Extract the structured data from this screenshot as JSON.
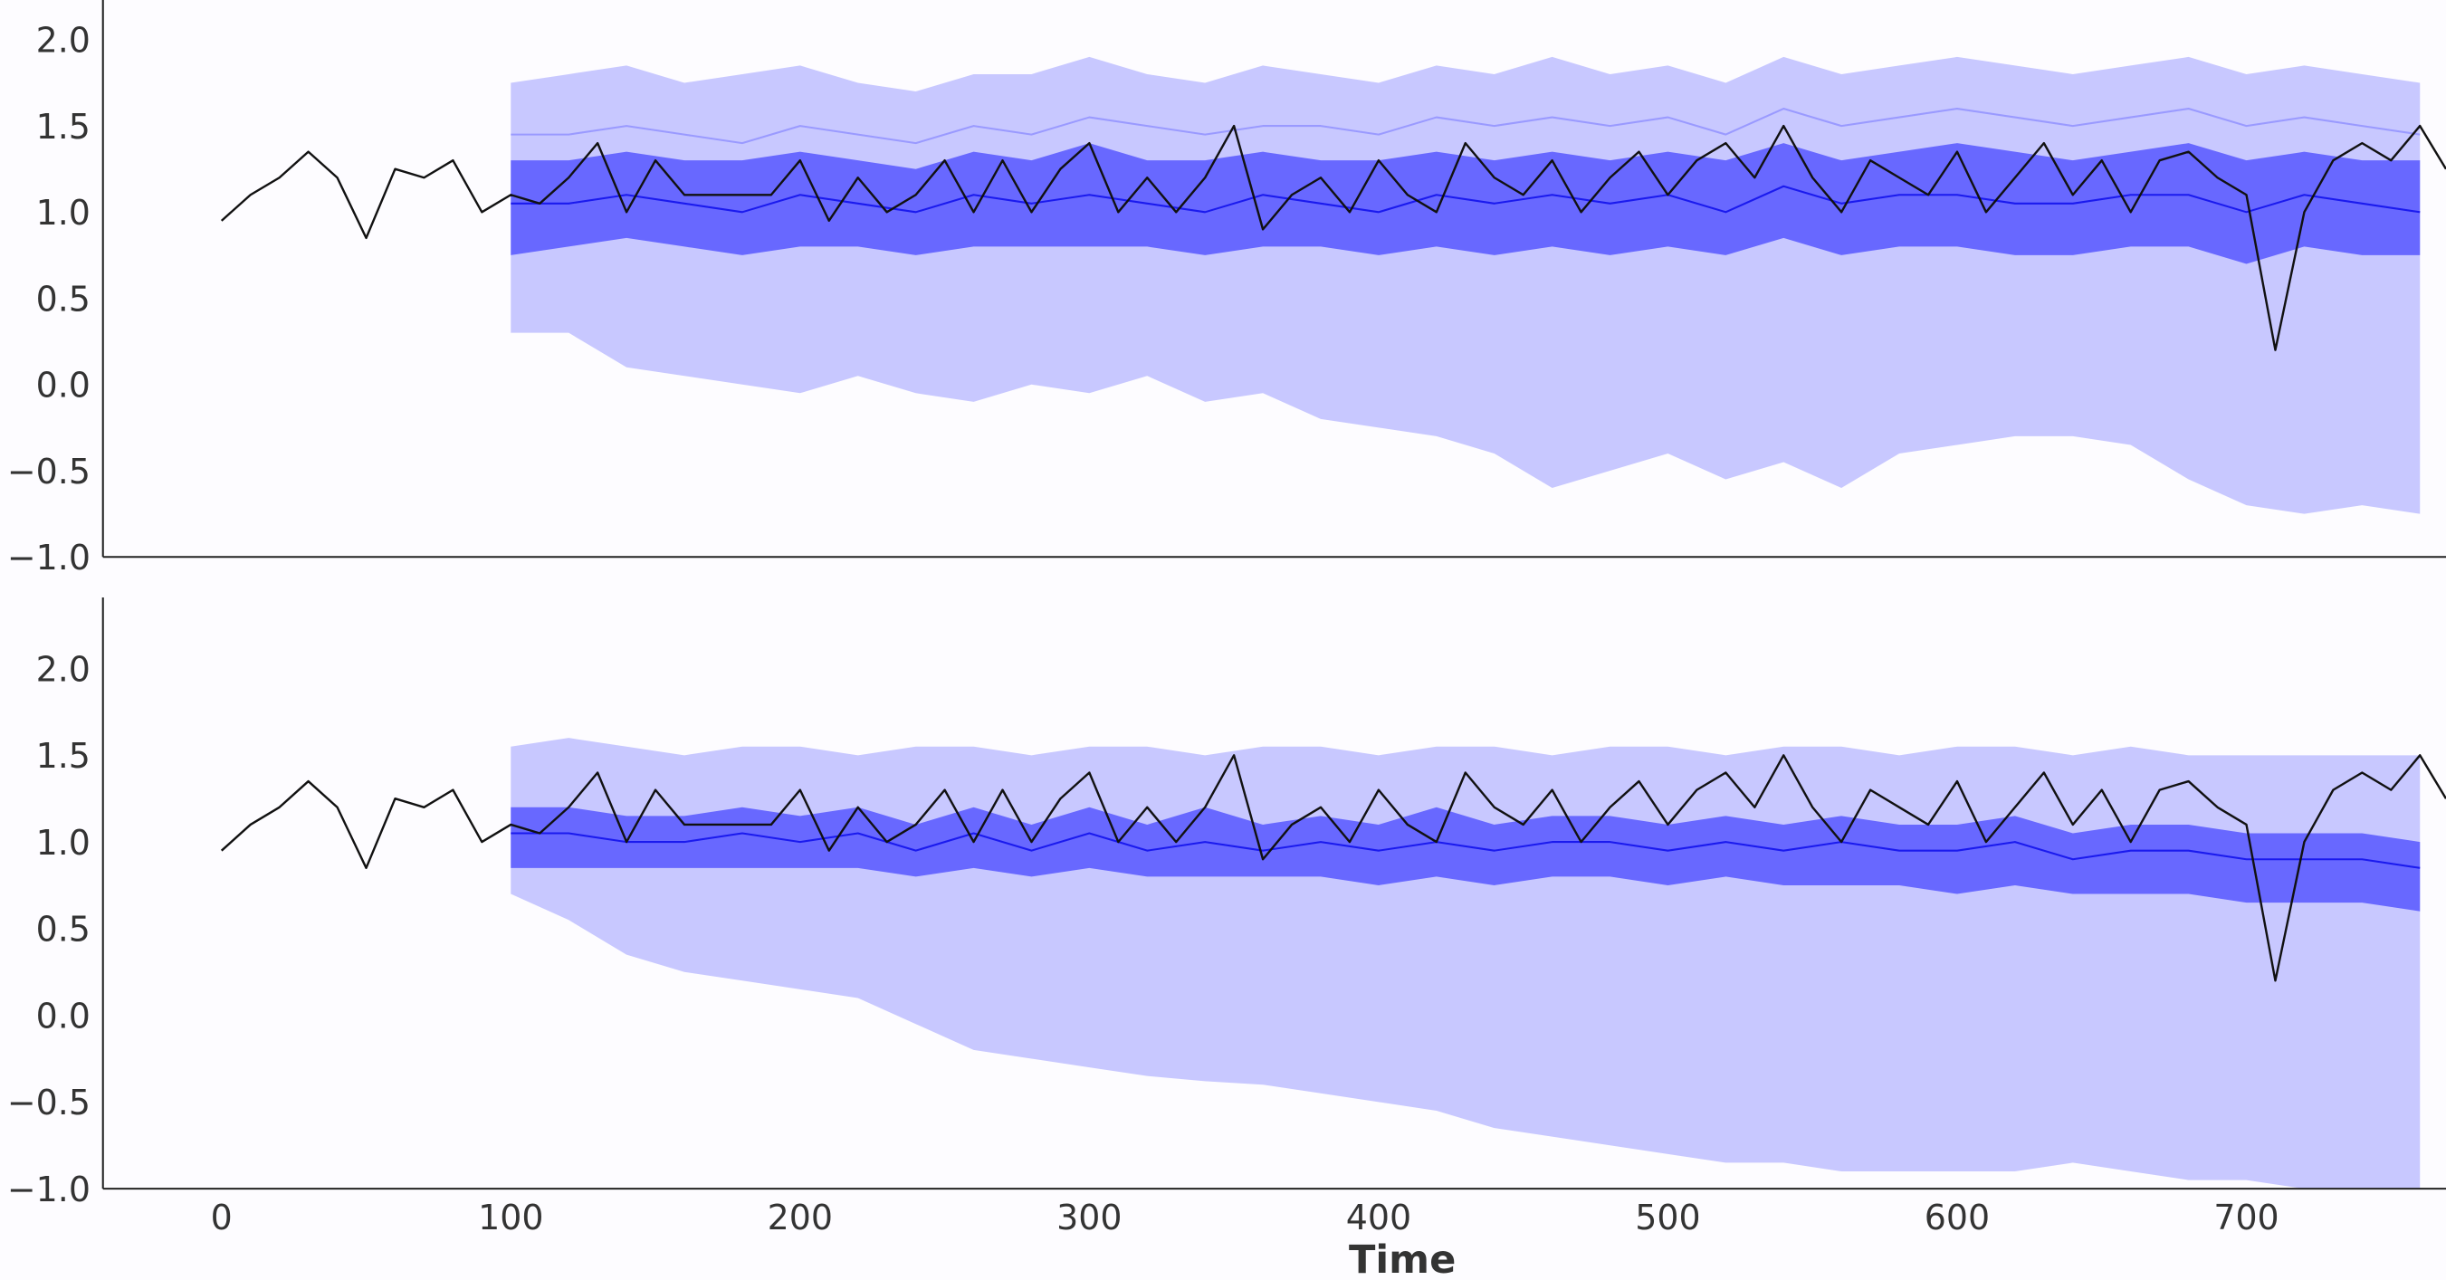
{
  "chart_data": [
    {
      "type": "area",
      "panel": "top",
      "xlim": [
        -41,
        769
      ],
      "ylim": [
        -1.0,
        2.23
      ],
      "yticks": [
        "2.0",
        "1.5",
        "1.0",
        "0.5",
        "0.0",
        "−0.5",
        "−1.0"
      ],
      "ytick_values": [
        2.0,
        1.5,
        1.0,
        0.5,
        0.0,
        -0.5,
        -1.0
      ],
      "grid": false,
      "colors": {
        "observed": "#111111",
        "median": "#1a1aee",
        "inner_band": "#6868ff",
        "outer_band": "#c8c8ff",
        "upper_line": "#9a9aff"
      },
      "forecast_x": [
        100,
        120,
        140,
        160,
        180,
        200,
        220,
        240,
        260,
        280,
        300,
        320,
        340,
        360,
        380,
        400,
        420,
        440,
        460,
        480,
        500,
        520,
        540,
        560,
        580,
        600,
        620,
        640,
        660,
        680,
        700,
        720,
        740,
        760
      ],
      "outer_lower": [
        0.3,
        0.3,
        0.1,
        0.05,
        0.0,
        -0.05,
        0.05,
        -0.05,
        -0.1,
        0.0,
        -0.05,
        0.05,
        -0.1,
        -0.05,
        -0.2,
        -0.25,
        -0.3,
        -0.4,
        -0.6,
        -0.5,
        -0.4,
        -0.55,
        -0.45,
        -0.6,
        -0.4,
        -0.35,
        -0.3,
        -0.3,
        -0.35,
        -0.55,
        -0.7,
        -0.75,
        -0.7,
        -0.75
      ],
      "outer_upper": [
        1.75,
        1.8,
        1.85,
        1.75,
        1.8,
        1.85,
        1.75,
        1.7,
        1.8,
        1.8,
        1.9,
        1.8,
        1.75,
        1.85,
        1.8,
        1.75,
        1.85,
        1.8,
        1.9,
        1.8,
        1.85,
        1.75,
        1.9,
        1.8,
        1.85,
        1.9,
        1.85,
        1.8,
        1.85,
        1.9,
        1.8,
        1.85,
        1.8,
        1.75
      ],
      "upper_line": [
        1.45,
        1.45,
        1.5,
        1.45,
        1.4,
        1.5,
        1.45,
        1.4,
        1.5,
        1.45,
        1.55,
        1.5,
        1.45,
        1.5,
        1.5,
        1.45,
        1.55,
        1.5,
        1.55,
        1.5,
        1.55,
        1.45,
        1.6,
        1.5,
        1.55,
        1.6,
        1.55,
        1.5,
        1.55,
        1.6,
        1.5,
        1.55,
        1.5,
        1.45
      ],
      "inner_upper": [
        1.3,
        1.3,
        1.35,
        1.3,
        1.3,
        1.35,
        1.3,
        1.25,
        1.35,
        1.3,
        1.4,
        1.3,
        1.3,
        1.35,
        1.3,
        1.3,
        1.35,
        1.3,
        1.35,
        1.3,
        1.35,
        1.3,
        1.4,
        1.3,
        1.35,
        1.4,
        1.35,
        1.3,
        1.35,
        1.4,
        1.3,
        1.35,
        1.3,
        1.3
      ],
      "median": [
        1.05,
        1.05,
        1.1,
        1.05,
        1.0,
        1.1,
        1.05,
        1.0,
        1.1,
        1.05,
        1.1,
        1.05,
        1.0,
        1.1,
        1.05,
        1.0,
        1.1,
        1.05,
        1.1,
        1.05,
        1.1,
        1.0,
        1.15,
        1.05,
        1.1,
        1.1,
        1.05,
        1.05,
        1.1,
        1.1,
        1.0,
        1.1,
        1.05,
        1.0
      ],
      "inner_lower": [
        0.75,
        0.8,
        0.85,
        0.8,
        0.75,
        0.8,
        0.8,
        0.75,
        0.8,
        0.8,
        0.8,
        0.8,
        0.75,
        0.8,
        0.8,
        0.75,
        0.8,
        0.75,
        0.8,
        0.75,
        0.8,
        0.75,
        0.85,
        0.75,
        0.8,
        0.8,
        0.75,
        0.75,
        0.8,
        0.8,
        0.7,
        0.8,
        0.75,
        0.75
      ]
    },
    {
      "type": "area",
      "panel": "bottom",
      "xlabel": "Time",
      "xlim": [
        -41,
        769
      ],
      "ylim": [
        -1.0,
        2.41
      ],
      "xticks": [
        "0",
        "100",
        "200",
        "300",
        "400",
        "500",
        "600",
        "700"
      ],
      "xtick_values": [
        0,
        100,
        200,
        300,
        400,
        500,
        600,
        700
      ],
      "yticks": [
        "2.0",
        "1.5",
        "1.0",
        "0.5",
        "0.0",
        "−0.5",
        "−1.0"
      ],
      "ytick_values": [
        2.0,
        1.5,
        1.0,
        0.5,
        0.0,
        -0.5,
        -1.0
      ],
      "grid": false,
      "colors": {
        "observed": "#111111",
        "median": "#1a1aee",
        "inner_band": "#6868ff",
        "outer_band": "#c8c8ff"
      },
      "forecast_x": [
        100,
        120,
        140,
        160,
        180,
        200,
        220,
        240,
        260,
        280,
        300,
        320,
        340,
        360,
        380,
        400,
        420,
        440,
        460,
        480,
        500,
        520,
        540,
        560,
        580,
        600,
        620,
        640,
        660,
        680,
        700,
        720,
        740,
        760
      ],
      "outer_lower": [
        0.7,
        0.55,
        0.35,
        0.25,
        0.2,
        0.15,
        0.1,
        -0.05,
        -0.2,
        -0.25,
        -0.3,
        -0.35,
        -0.38,
        -0.4,
        -0.45,
        -0.5,
        -0.55,
        -0.65,
        -0.7,
        -0.75,
        -0.8,
        -0.85,
        -0.85,
        -0.9,
        -0.9,
        -0.9,
        -0.9,
        -0.85,
        -0.9,
        -0.95,
        -0.95,
        -1.0,
        -1.05,
        -1.05
      ],
      "outer_upper": [
        1.55,
        1.6,
        1.55,
        1.5,
        1.55,
        1.55,
        1.5,
        1.55,
        1.55,
        1.5,
        1.55,
        1.55,
        1.5,
        1.55,
        1.55,
        1.5,
        1.55,
        1.55,
        1.5,
        1.55,
        1.55,
        1.5,
        1.55,
        1.55,
        1.5,
        1.55,
        1.55,
        1.5,
        1.55,
        1.5,
        1.5,
        1.5,
        1.5,
        1.5
      ],
      "inner_upper": [
        1.2,
        1.2,
        1.15,
        1.15,
        1.2,
        1.15,
        1.2,
        1.1,
        1.2,
        1.1,
        1.2,
        1.1,
        1.2,
        1.1,
        1.15,
        1.1,
        1.2,
        1.1,
        1.15,
        1.15,
        1.1,
        1.15,
        1.1,
        1.15,
        1.1,
        1.1,
        1.15,
        1.05,
        1.1,
        1.1,
        1.05,
        1.05,
        1.05,
        1.0
      ],
      "median": [
        1.05,
        1.05,
        1.0,
        1.0,
        1.05,
        1.0,
        1.05,
        0.95,
        1.05,
        0.95,
        1.05,
        0.95,
        1.0,
        0.95,
        1.0,
        0.95,
        1.0,
        0.95,
        1.0,
        1.0,
        0.95,
        1.0,
        0.95,
        1.0,
        0.95,
        0.95,
        1.0,
        0.9,
        0.95,
        0.95,
        0.9,
        0.9,
        0.9,
        0.85
      ],
      "inner_lower": [
        0.85,
        0.85,
        0.85,
        0.85,
        0.85,
        0.85,
        0.85,
        0.8,
        0.85,
        0.8,
        0.85,
        0.8,
        0.8,
        0.8,
        0.8,
        0.75,
        0.8,
        0.75,
        0.8,
        0.8,
        0.75,
        0.8,
        0.75,
        0.75,
        0.75,
        0.7,
        0.75,
        0.7,
        0.7,
        0.7,
        0.65,
        0.65,
        0.65,
        0.6
      ]
    }
  ],
  "observed": {
    "x": [
      0,
      10,
      20,
      30,
      40,
      50,
      60,
      70,
      80,
      90,
      100,
      110,
      120,
      130,
      140,
      150,
      160,
      170,
      180,
      190,
      200,
      210,
      220,
      230,
      240,
      250,
      260,
      270,
      280,
      290,
      300,
      310,
      320,
      330,
      340,
      350,
      360,
      370,
      380,
      390,
      400,
      410,
      420,
      430,
      440,
      450,
      460,
      470,
      480,
      490,
      500,
      510,
      520,
      530,
      540,
      550,
      560,
      570,
      580,
      590,
      600,
      610,
      620,
      630,
      640,
      650,
      660,
      670,
      680,
      690,
      700,
      710,
      720,
      730,
      740,
      750,
      760,
      769
    ],
    "y": [
      0.95,
      1.1,
      1.2,
      1.35,
      1.2,
      0.85,
      1.25,
      1.2,
      1.3,
      1.0,
      1.1,
      1.05,
      1.2,
      1.4,
      1.0,
      1.3,
      1.1,
      1.1,
      1.1,
      1.1,
      1.3,
      0.95,
      1.2,
      1.0,
      1.1,
      1.3,
      1.0,
      1.3,
      1.0,
      1.25,
      1.4,
      1.0,
      1.2,
      1.0,
      1.2,
      1.5,
      0.9,
      1.1,
      1.2,
      1.0,
      1.3,
      1.1,
      1.0,
      1.4,
      1.2,
      1.1,
      1.3,
      1.0,
      1.2,
      1.35,
      1.1,
      1.3,
      1.4,
      1.2,
      1.5,
      1.2,
      1.0,
      1.3,
      1.2,
      1.1,
      1.35,
      1.0,
      1.2,
      1.4,
      1.1,
      1.3,
      1.0,
      1.3,
      1.35,
      1.2,
      1.1,
      0.2,
      1.0,
      1.3,
      1.4,
      1.3,
      1.5,
      1.25
    ]
  }
}
